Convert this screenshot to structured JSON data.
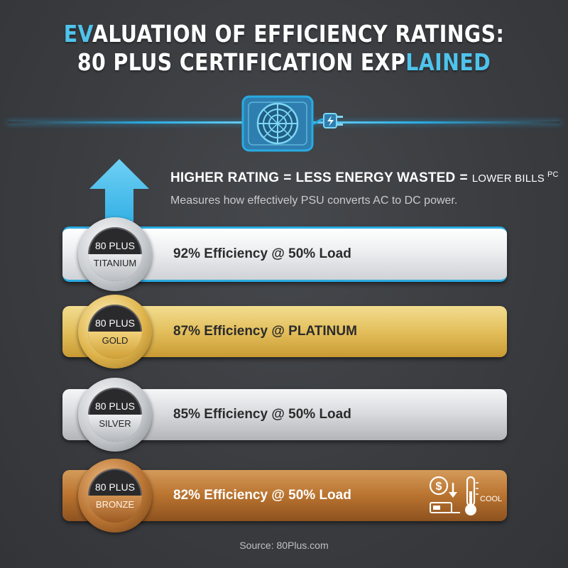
{
  "title": {
    "line1_accent": "EV",
    "line1_rest": "ALUATION OF EFFICIENCY RATINGS:",
    "line2_main": "80 PLUS CERTIFICATION EXP",
    "line2_accent": "LAINED"
  },
  "headline": {
    "part1": "HIGHER RATING",
    "eq1": "=",
    "part2": "LESS ENERGY WASTED",
    "eq2": "=",
    "part3": "LOWER BILLS",
    "sup": "PC"
  },
  "subtext": "Measures how effectively PSU converts AC to DC power.",
  "tiers": [
    {
      "badge_top": "80 PLUS",
      "badge_bottom": "TITANIUM",
      "label": "92% Efficiency @ 50% Load"
    },
    {
      "badge_top": "80 PLUS",
      "badge_bottom": "GOLD",
      "label": "87% Efficiency @ PLATINUM"
    },
    {
      "badge_top": "80 PLUS",
      "badge_bottom": "SILVER",
      "label": "85% Efficiency @ 50% Load"
    },
    {
      "badge_top": "80 PLUS",
      "badge_bottom": "BRONZE",
      "label": "82% Efficiency @ 50% Load"
    }
  ],
  "bronze_icons": {
    "cool_label": "COOL",
    "icons": [
      "dollar-savings-icon",
      "thermometer-icon"
    ]
  },
  "icons": {
    "psu": "psu-fan-icon",
    "plug": "power-plug-icon",
    "arrow": "up-arrow-icon"
  },
  "colors": {
    "accent": "#29abe2",
    "background": "#3a3c40",
    "titanium": "#d9dcdf",
    "gold": "#e3bf5c",
    "silver": "#cfd2d5",
    "bronze": "#b9732f"
  },
  "source": "Source: 80Plus.com"
}
